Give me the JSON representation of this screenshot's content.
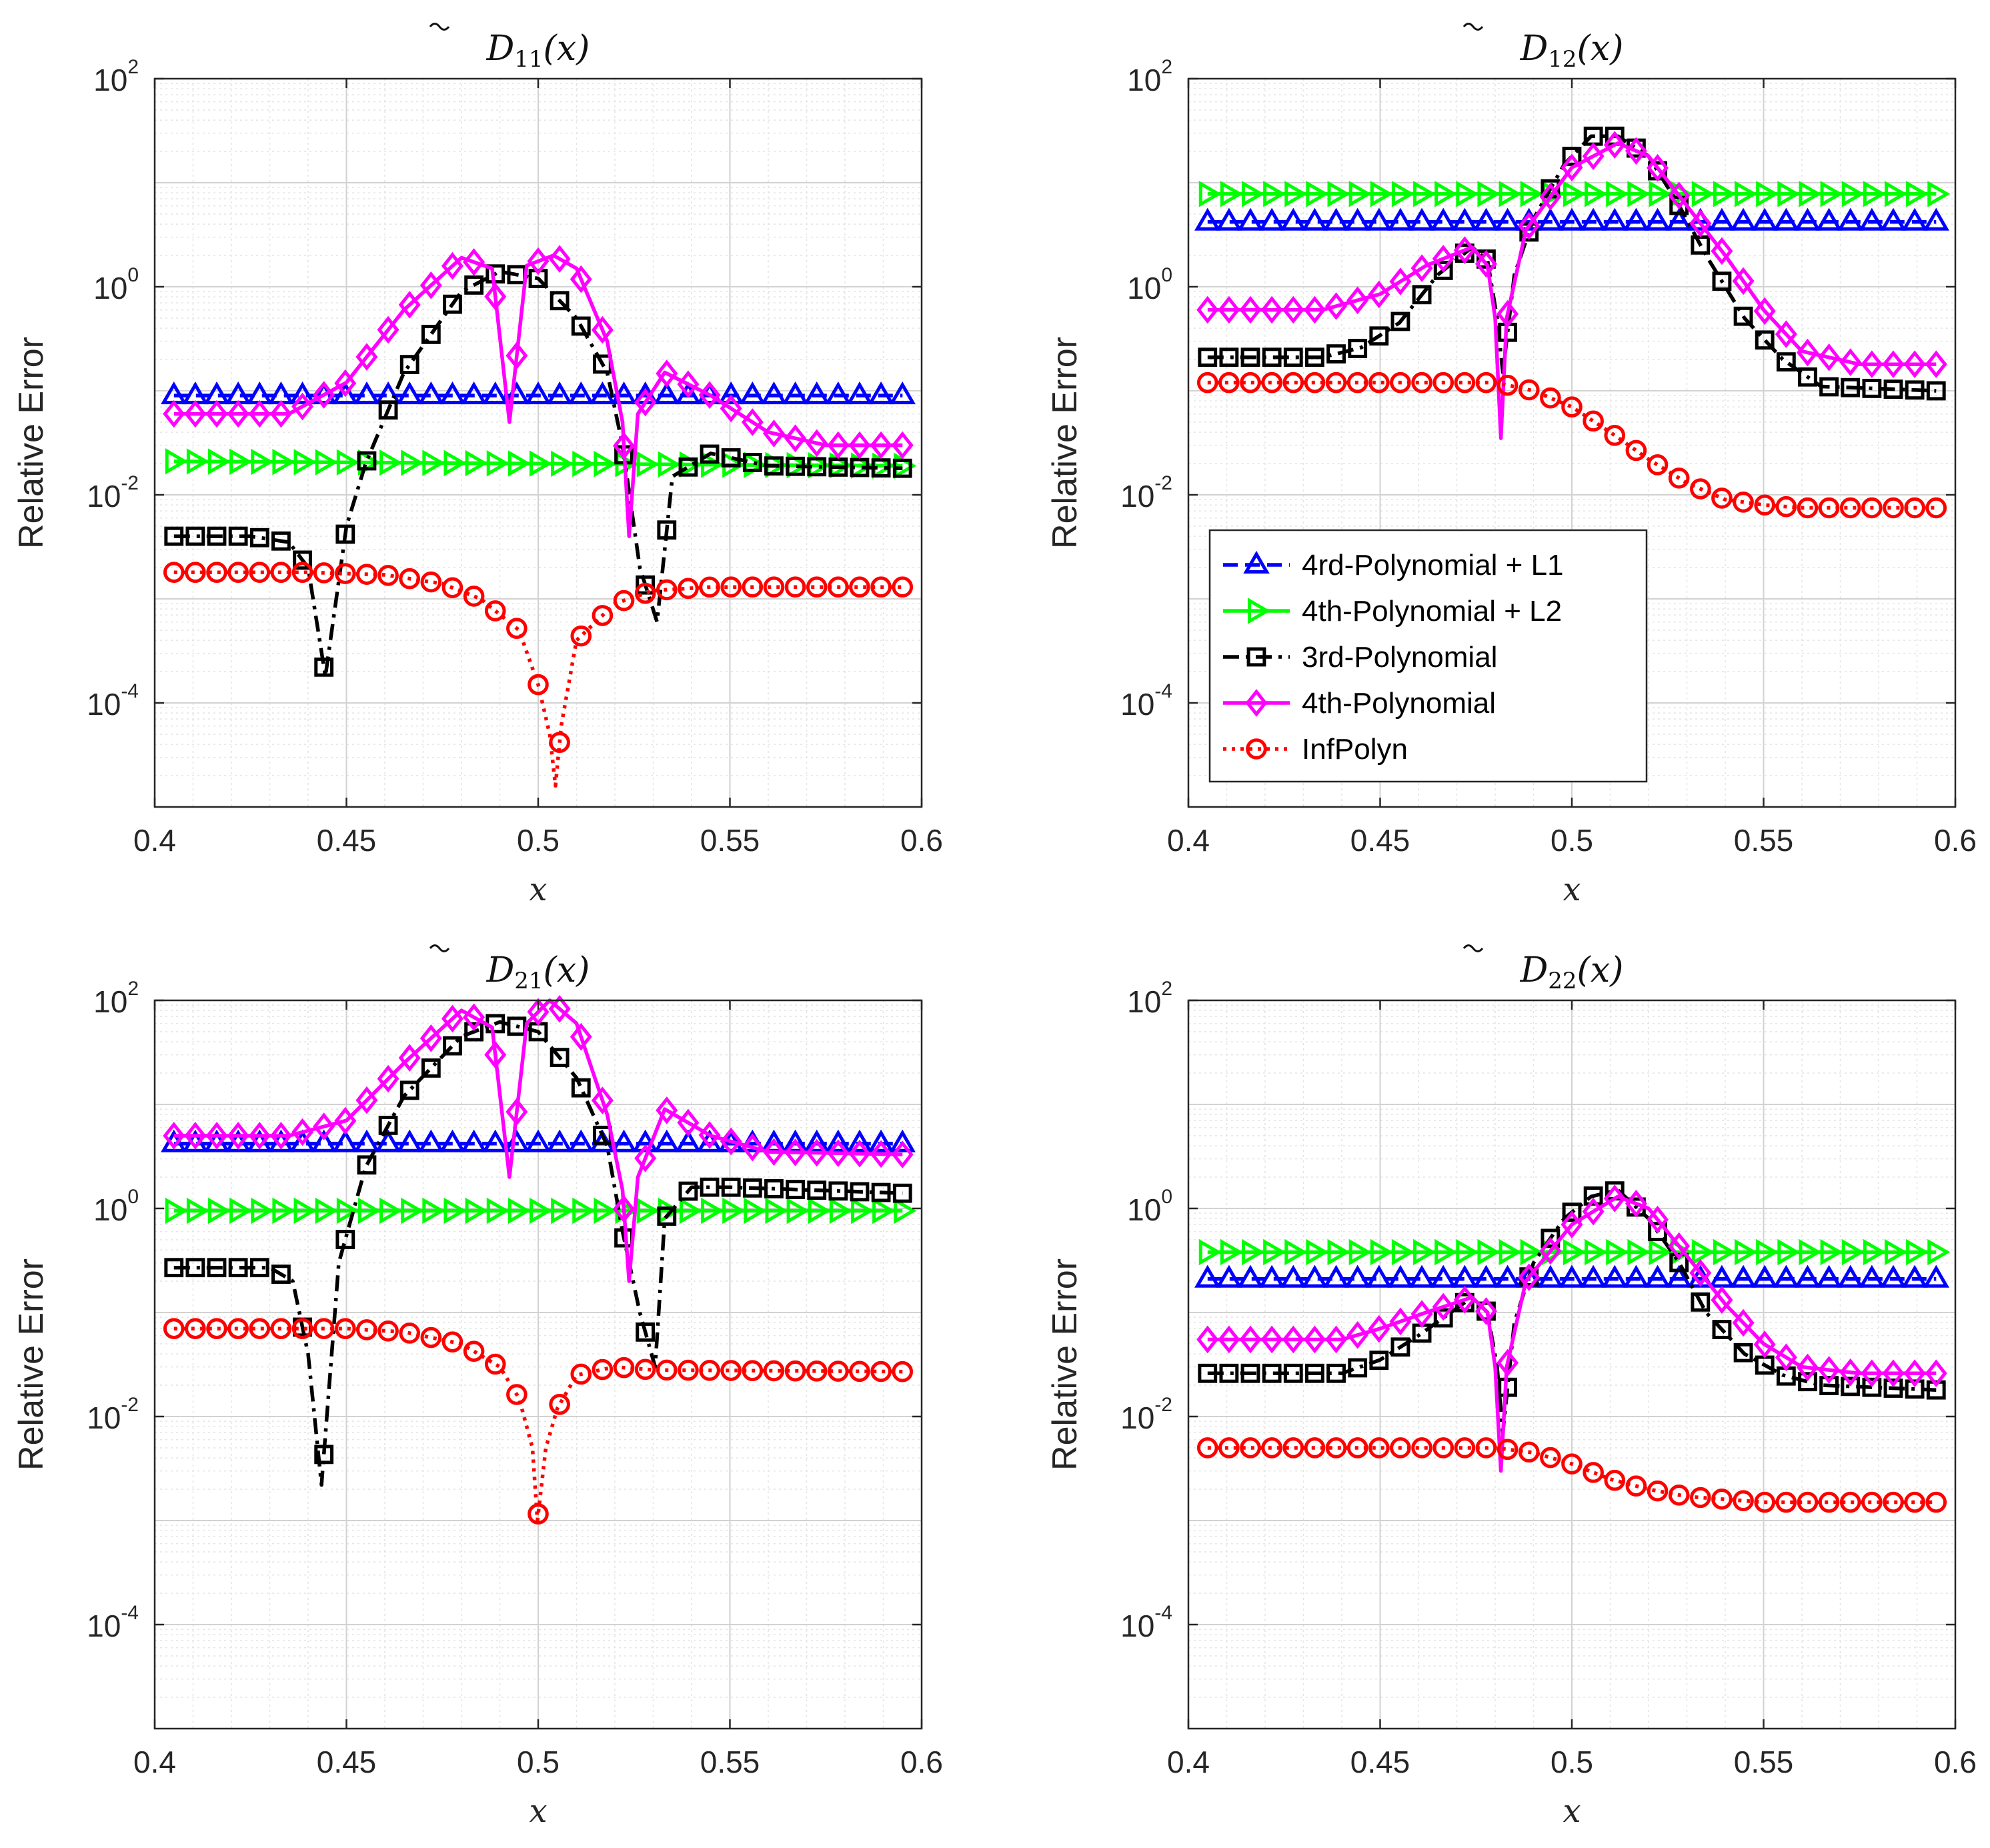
{
  "chart_data": [
    {
      "type": "line",
      "title_base": "D",
      "title_sub": "11",
      "title_arg": "(x)",
      "xlabel": "x",
      "ylabel": "Relative Error",
      "xlim": [
        0.4,
        0.6
      ],
      "ylim_log10": [
        -5.0,
        2.0
      ],
      "xticks": [
        "0.4",
        "0.45",
        "0.5",
        "0.55",
        "0.6"
      ],
      "ytick_base": "10",
      "ytick_exponents": [
        "-4",
        "-2",
        "0",
        "2"
      ],
      "series": [
        {
          "name": "4rd-Polynomial + L1",
          "color": "#0000ff",
          "marker": "triangle",
          "dash": "dash",
          "x": [
            0.405,
            0.595
          ],
          "y": [
            0.09,
            0.09
          ]
        },
        {
          "name": "4th-Polynomial + L2",
          "color": "#00ff00",
          "marker": "triangle-right",
          "dash": "solid",
          "x": [
            0.405,
            0.595
          ],
          "y": [
            0.021,
            0.019
          ]
        },
        {
          "name": "3rd-Polynomial",
          "color": "#000000",
          "marker": "square",
          "dash": "dashdot",
          "x": [
            0.405,
            0.425,
            0.435,
            0.44,
            0.4445,
            0.45,
            0.455,
            0.465,
            0.48,
            0.49,
            0.5,
            0.51,
            0.518,
            0.522,
            0.5265,
            0.531,
            0.535,
            0.545,
            0.56,
            0.595
          ],
          "y": [
            0.004,
            0.004,
            0.0035,
            0.002,
            0.00018,
            0.005,
            0.02,
            0.15,
            0.9,
            1.4,
            1.2,
            0.5,
            0.15,
            0.03,
            0.002,
            0.0006,
            0.015,
            0.025,
            0.019,
            0.018
          ]
        },
        {
          "name": "4th-Polynomial",
          "color": "#ff00ff",
          "marker": "diamond",
          "dash": "solid",
          "x": [
            0.405,
            0.435,
            0.45,
            0.465,
            0.48,
            0.488,
            0.4925,
            0.497,
            0.504,
            0.51,
            0.518,
            0.522,
            0.5237,
            0.526,
            0.533,
            0.545,
            0.56,
            0.575,
            0.595
          ],
          "y": [
            0.06,
            0.06,
            0.12,
            0.6,
            1.9,
            1.5,
            0.05,
            1.6,
            2.0,
            1.5,
            0.3,
            0.05,
            0.004,
            0.06,
            0.15,
            0.09,
            0.04,
            0.03,
            0.03
          ]
        },
        {
          "name": "InfPolyn",
          "color": "#ff0000",
          "marker": "circle",
          "dash": "dot",
          "x": [
            0.405,
            0.44,
            0.46,
            0.475,
            0.485,
            0.495,
            0.5,
            0.503,
            0.5045,
            0.506,
            0.51,
            0.52,
            0.53,
            0.545,
            0.595
          ],
          "y": [
            0.0018,
            0.0018,
            0.0017,
            0.0014,
            0.001,
            0.0005,
            0.00015,
            5e-05,
            1.6e-05,
            6e-05,
            0.0004,
            0.0009,
            0.0012,
            0.0013,
            0.0013
          ]
        }
      ]
    },
    {
      "type": "line",
      "title_base": "D",
      "title_sub": "12",
      "title_arg": "(x)",
      "xlabel": "x",
      "ylabel": "Relative Error",
      "xlim": [
        0.4,
        0.6
      ],
      "ylim_log10": [
        -5.0,
        2.0
      ],
      "xticks": [
        "0.4",
        "0.45",
        "0.5",
        "0.55",
        "0.6"
      ],
      "ytick_base": "10",
      "ytick_exponents": [
        "-4",
        "-2",
        "0",
        "2"
      ],
      "legend_location": "left-lower",
      "series": [
        {
          "name": "4rd-Polynomial + L1",
          "color": "#0000ff",
          "marker": "triangle",
          "dash": "dash",
          "x": [
            0.405,
            0.595
          ],
          "y": [
            4.2,
            4.2
          ]
        },
        {
          "name": "4th-Polynomial + L2",
          "color": "#00ff00",
          "marker": "triangle-right",
          "dash": "solid",
          "x": [
            0.405,
            0.595
          ],
          "y": [
            7.8,
            7.8
          ]
        },
        {
          "name": "3rd-Polynomial",
          "color": "#000000",
          "marker": "square",
          "dash": "dashdot",
          "x": [
            0.405,
            0.435,
            0.445,
            0.455,
            0.465,
            0.474,
            0.478,
            0.4805,
            0.482,
            0.485,
            0.49,
            0.498,
            0.505,
            0.512,
            0.52,
            0.528,
            0.535,
            0.545,
            0.555,
            0.565,
            0.595
          ],
          "y": [
            0.21,
            0.21,
            0.26,
            0.45,
            1.3,
            2.4,
            1.8,
            0.5,
            0.15,
            1.3,
            4.5,
            15,
            28,
            28,
            18,
            6,
            2,
            0.5,
            0.2,
            0.11,
            0.1
          ]
        },
        {
          "name": "4th-Polynomial",
          "color": "#ff00ff",
          "marker": "diamond",
          "dash": "solid",
          "x": [
            0.405,
            0.435,
            0.45,
            0.462,
            0.474,
            0.478,
            0.48,
            0.4815,
            0.483,
            0.488,
            0.5,
            0.512,
            0.52,
            0.53,
            0.54,
            0.55,
            0.56,
            0.575,
            0.595
          ],
          "y": [
            0.6,
            0.6,
            0.85,
            1.6,
            2.4,
            1.6,
            0.5,
            0.035,
            0.5,
            3.5,
            14,
            24,
            18,
            6,
            2,
            0.6,
            0.24,
            0.18,
            0.18
          ]
        },
        {
          "name": "InfPolyn",
          "color": "#ff0000",
          "marker": "circle",
          "dash": "dot",
          "x": [
            0.405,
            0.48,
            0.49,
            0.5,
            0.51,
            0.52,
            0.53,
            0.54,
            0.55,
            0.56,
            0.595
          ],
          "y": [
            0.12,
            0.12,
            0.1,
            0.07,
            0.04,
            0.022,
            0.013,
            0.009,
            0.008,
            0.0075,
            0.0075
          ]
        }
      ]
    },
    {
      "type": "line",
      "title_base": "D",
      "title_sub": "21",
      "title_arg": "(x)",
      "xlabel": "x",
      "ylabel": "Relative Error",
      "xlim": [
        0.4,
        0.6
      ],
      "ylim_log10": [
        -5.0,
        2.0
      ],
      "xticks": [
        "0.4",
        "0.45",
        "0.5",
        "0.55",
        "0.6"
      ],
      "ytick_base": "10",
      "ytick_exponents": [
        "-4",
        "-2",
        "0",
        "2"
      ],
      "series": [
        {
          "name": "4rd-Polynomial + L1",
          "color": "#0000ff",
          "marker": "triangle",
          "dash": "dash",
          "x": [
            0.405,
            0.595
          ],
          "y": [
            4.2,
            4.2
          ]
        },
        {
          "name": "4th-Polynomial + L2",
          "color": "#00ff00",
          "marker": "triangle-right",
          "dash": "solid",
          "x": [
            0.405,
            0.595
          ],
          "y": [
            0.95,
            0.95
          ]
        },
        {
          "name": "3rd-Polynomial",
          "color": "#000000",
          "marker": "square",
          "dash": "dashdot",
          "x": [
            0.405,
            0.43,
            0.436,
            0.44,
            0.4435,
            0.448,
            0.455,
            0.465,
            0.48,
            0.49,
            0.5,
            0.51,
            0.518,
            0.522,
            0.5265,
            0.5305,
            0.533,
            0.54,
            0.55,
            0.595
          ],
          "y": [
            0.27,
            0.27,
            0.2,
            0.04,
            0.0022,
            0.3,
            2.5,
            12,
            45,
            62,
            50,
            18,
            4,
            0.6,
            0.1,
            0.03,
            0.8,
            1.6,
            1.6,
            1.4
          ]
        },
        {
          "name": "4th-Polynomial",
          "color": "#ff00ff",
          "marker": "diamond",
          "dash": "solid",
          "x": [
            0.405,
            0.435,
            0.45,
            0.465,
            0.48,
            0.488,
            0.4925,
            0.497,
            0.503,
            0.51,
            0.518,
            0.522,
            0.5237,
            0.526,
            0.533,
            0.545,
            0.56,
            0.595
          ],
          "y": [
            5,
            5,
            7,
            25,
            80,
            55,
            2,
            60,
            100,
            60,
            8,
            1.5,
            0.2,
            2,
            9,
            5,
            3.5,
            3.3
          ]
        },
        {
          "name": "InfPolyn",
          "color": "#ff0000",
          "marker": "circle",
          "dash": "dot",
          "x": [
            0.405,
            0.45,
            0.465,
            0.48,
            0.49,
            0.495,
            0.4985,
            0.4998,
            0.502,
            0.505,
            0.51,
            0.52,
            0.53,
            0.595
          ],
          "y": [
            0.07,
            0.07,
            0.065,
            0.05,
            0.03,
            0.015,
            0.005,
            0.001,
            0.005,
            0.012,
            0.025,
            0.03,
            0.028,
            0.027
          ]
        }
      ]
    },
    {
      "type": "line",
      "title_base": "D",
      "title_sub": "22",
      "title_arg": "(x)",
      "xlabel": "x",
      "ylabel": "Relative Error",
      "xlim": [
        0.4,
        0.6
      ],
      "ylim_log10": [
        -5.0,
        2.0
      ],
      "xticks": [
        "0.4",
        "0.45",
        "0.5",
        "0.55",
        "0.6"
      ],
      "ytick_base": "10",
      "ytick_exponents": [
        "-4",
        "-2",
        "0",
        "2"
      ],
      "series": [
        {
          "name": "4rd-Polynomial + L1",
          "color": "#0000ff",
          "marker": "triangle",
          "dash": "dash",
          "x": [
            0.405,
            0.595
          ],
          "y": [
            0.21,
            0.21
          ]
        },
        {
          "name": "4th-Polynomial + L2",
          "color": "#00ff00",
          "marker": "triangle-right",
          "dash": "solid",
          "x": [
            0.405,
            0.595
          ],
          "y": [
            0.38,
            0.38
          ]
        },
        {
          "name": "3rd-Polynomial",
          "color": "#000000",
          "marker": "square",
          "dash": "dashdot",
          "x": [
            0.405,
            0.44,
            0.45,
            0.46,
            0.474,
            0.478,
            0.4805,
            0.482,
            0.485,
            0.49,
            0.498,
            0.505,
            0.512,
            0.52,
            0.528,
            0.535,
            0.545,
            0.555,
            0.565,
            0.595
          ],
          "y": [
            0.026,
            0.026,
            0.035,
            0.06,
            0.14,
            0.1,
            0.03,
            0.007,
            0.08,
            0.3,
            0.8,
            1.3,
            1.5,
            0.8,
            0.3,
            0.1,
            0.04,
            0.025,
            0.02,
            0.018
          ]
        },
        {
          "name": "4th-Polynomial",
          "color": "#ff00ff",
          "marker": "diamond",
          "dash": "solid",
          "x": [
            0.405,
            0.44,
            0.45,
            0.462,
            0.474,
            0.478,
            0.48,
            0.4815,
            0.483,
            0.488,
            0.5,
            0.512,
            0.52,
            0.53,
            0.54,
            0.55,
            0.56,
            0.575,
            0.595
          ],
          "y": [
            0.055,
            0.055,
            0.07,
            0.1,
            0.14,
            0.1,
            0.03,
            0.003,
            0.03,
            0.2,
            0.7,
            1.3,
            1.0,
            0.35,
            0.12,
            0.05,
            0.03,
            0.026,
            0.026
          ]
        },
        {
          "name": "InfPolyn",
          "color": "#ff0000",
          "marker": "circle",
          "dash": "dot",
          "x": [
            0.405,
            0.48,
            0.49,
            0.5,
            0.51,
            0.52,
            0.53,
            0.54,
            0.55,
            0.595
          ],
          "y": [
            0.005,
            0.005,
            0.0045,
            0.0035,
            0.0025,
            0.002,
            0.0017,
            0.0016,
            0.0015,
            0.0015
          ]
        }
      ]
    }
  ]
}
